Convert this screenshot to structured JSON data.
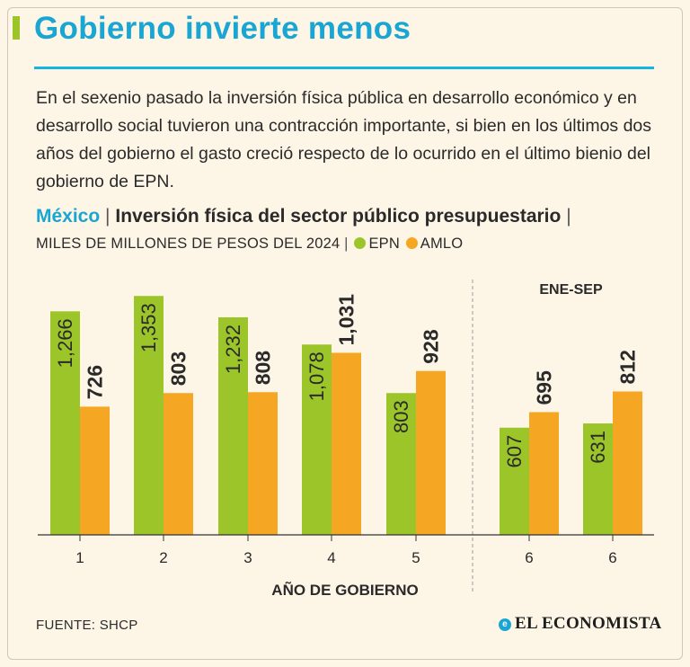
{
  "header": {
    "title": "Gobierno invierte menos",
    "intro": "En el sexenio pasado la inversión física pública en desarrollo económico y en desarrollo social tuvieron una contracción importante, si bien en los últimos dos años del gobierno el gasto creció respecto de lo ocurrido en el último bienio del gobierno de EPN."
  },
  "subtitle": {
    "country": "México",
    "separator": "|",
    "text": "Inversión física del sector público presupuestario",
    "trailing_separator": "|"
  },
  "units": {
    "text": "MILES DE MILLONES DE PESOS DEL 2024",
    "separator": "|",
    "legend_epn": "EPN",
    "legend_amlo": "AMLO"
  },
  "chart_data": {
    "type": "bar",
    "title": "Inversión física del sector público presupuestario",
    "xlabel": "AÑO DE GOBIERNO",
    "ylabel": "",
    "unit": "MILES DE MILLONES DE PESOS DEL 2024",
    "ylim": [
      0,
      1400
    ],
    "categories": [
      "1",
      "2",
      "3",
      "4",
      "5",
      "6",
      "6"
    ],
    "series": [
      {
        "name": "EPN",
        "color": "#9cc529",
        "values": [
          1266,
          1353,
          1232,
          1078,
          803,
          607,
          631
        ],
        "labels": [
          "1,266",
          "1,353",
          "1,232",
          "1,078",
          "803",
          "607",
          "631"
        ]
      },
      {
        "name": "AMLO",
        "color": "#f5a623",
        "values": [
          726,
          803,
          808,
          1031,
          928,
          695,
          812
        ],
        "labels": [
          "726",
          "803",
          "808",
          "1,031",
          "928",
          "695",
          "812"
        ]
      }
    ],
    "annotations": [
      {
        "text": "ENE-SEP",
        "applies_to_categories": [
          5,
          6
        ]
      }
    ],
    "grid": false,
    "legend": "top-left"
  },
  "footer": {
    "source": "FUENTE: SHCP",
    "brand": "EL ECONOMISTA"
  }
}
